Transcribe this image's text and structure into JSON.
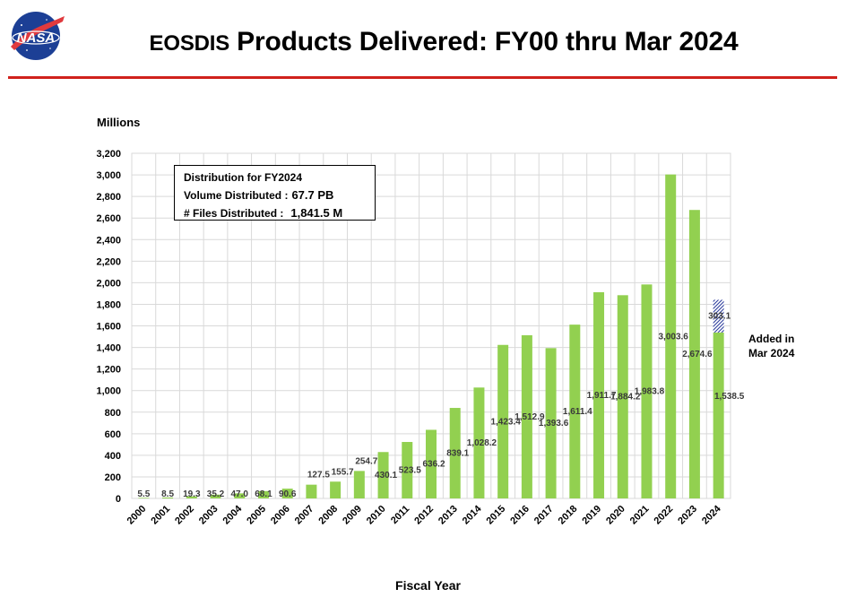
{
  "header": {
    "logo_text": "NASA",
    "title_prefix": "EOSDIS",
    "title_main": " Products Delivered: FY00 thru Mar 2024"
  },
  "info_box": {
    "heading": "Distribution for FY2024",
    "volume_label": "Volume Distributed :",
    "volume_value": "67.7 PB",
    "files_label": "# Files Distributed :",
    "files_value": "1,841.5 M"
  },
  "annotation": {
    "line1": "Added in",
    "line2": "Mar 2024"
  },
  "colors": {
    "bar": "#92d050",
    "added_hatch": "#2f3f9e",
    "grid": "#d9d9d9",
    "title_rule": "#d0211c"
  },
  "chart_data": {
    "type": "bar",
    "title": "EOSDIS Products Delivered: FY00 thru Mar 2024",
    "ylabel": "Millions",
    "xlabel": "Fiscal Year",
    "ylim": [
      0,
      3200
    ],
    "yticks": [
      0,
      200,
      400,
      600,
      800,
      1000,
      1200,
      1400,
      1600,
      1800,
      2000,
      2200,
      2400,
      2600,
      2800,
      3000,
      3200
    ],
    "ytick_labels": [
      "0",
      "200",
      "400",
      "600",
      "800",
      "1,000",
      "1,200",
      "1,400",
      "1,600",
      "1,800",
      "2,000",
      "2,200",
      "2,400",
      "2,600",
      "2,800",
      "3,000",
      "3,200"
    ],
    "grid": true,
    "categories": [
      "2000",
      "2001",
      "2002",
      "2003",
      "2004",
      "2005",
      "2006",
      "2007",
      "2008",
      "2009",
      "2010",
      "2011",
      "2012",
      "2013",
      "2014",
      "2015",
      "2016",
      "2017",
      "2018",
      "2019",
      "2020",
      "2021",
      "2022",
      "2023",
      "2024"
    ],
    "values": [
      5.5,
      8.5,
      19.3,
      35.2,
      47.0,
      68.1,
      90.6,
      127.5,
      155.7,
      254.7,
      430.1,
      523.5,
      636.2,
      839.1,
      1028.2,
      1423.4,
      1512.9,
      1393.6,
      1611.4,
      1911.7,
      1884.2,
      1983.8,
      3003.6,
      2674.6,
      1538.5
    ],
    "value_labels": [
      "5.5",
      "8.5",
      "19.3",
      "35.2",
      "47.0",
      "68.1",
      "90.6",
      "127.5",
      "155.7",
      "254.7",
      "430.1",
      "523.5",
      "636.2",
      "839.1",
      "1,028.2",
      "1,423.4",
      "1,512.9",
      "1,393.6",
      "1,611.4",
      "1,911.7",
      "1,884.2",
      "1,983.8",
      "3,003.6",
      "2,674.6",
      "1,538.5"
    ],
    "added": {
      "category": "2024",
      "value": 303.1,
      "label": "303.1"
    }
  }
}
